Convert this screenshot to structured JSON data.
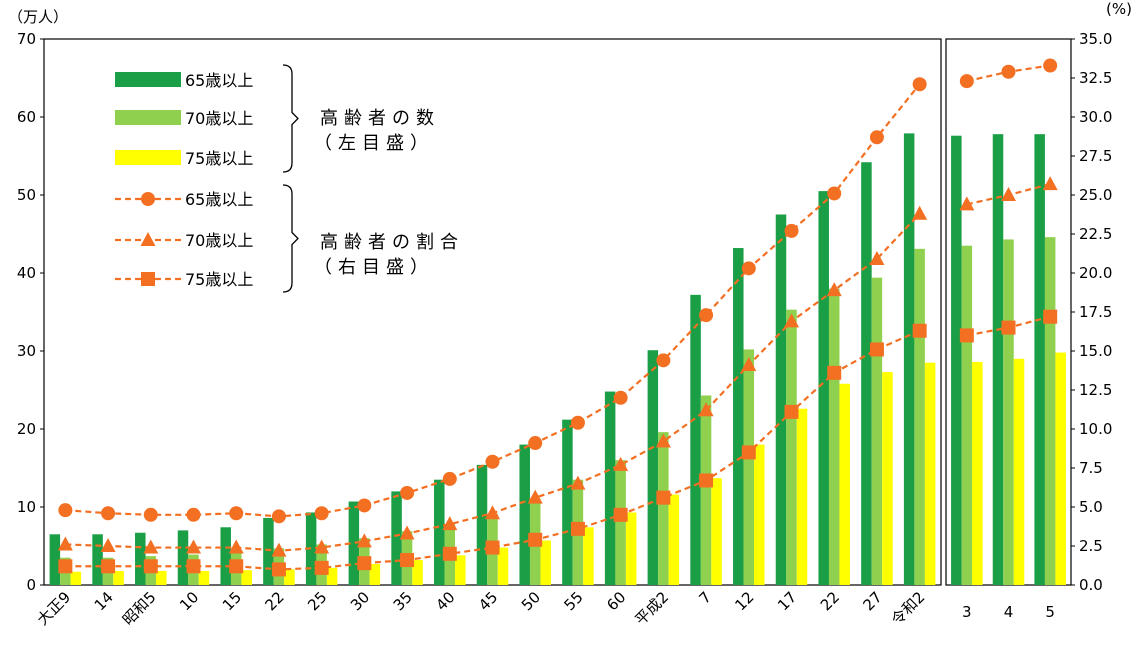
{
  "chart_data": {
    "type": "bar",
    "left_axis_unit": "（万人）",
    "right_axis_unit": "(%)",
    "left_axis": {
      "range": [
        0,
        70
      ],
      "ticks": [
        "0",
        "10",
        "20",
        "30",
        "40",
        "50",
        "60",
        "70"
      ]
    },
    "right_axis": {
      "range": [
        0,
        35
      ],
      "ticks": [
        "0.0",
        "2.5",
        "5.0",
        "7.5",
        "10.0",
        "12.5",
        "15.0",
        "17.5",
        "20.0",
        "22.5",
        "25.0",
        "27.5",
        "30.0",
        "32.5",
        "35.0"
      ]
    },
    "categories": [
      "大正9",
      "14",
      "昭和5",
      "10",
      "15",
      "22",
      "25",
      "30",
      "35",
      "40",
      "45",
      "50",
      "55",
      "60",
      "平成2",
      "7",
      "12",
      "17",
      "22",
      "27",
      "令和2",
      "3",
      "4",
      "5"
    ],
    "panels": [
      {
        "categories_count": 21
      },
      {
        "categories_count": 3
      }
    ],
    "bar_series": [
      {
        "name": "65歳以上",
        "color": "#1a9e46",
        "values": [
          6.5,
          6.5,
          6.7,
          7.0,
          7.4,
          8.6,
          9.3,
          10.7,
          12.0,
          13.5,
          15.4,
          18.0,
          21.2,
          24.8,
          30.1,
          37.2,
          43.2,
          47.5,
          50.5,
          54.2,
          57.9,
          57.6,
          57.8,
          57.8
        ]
      },
      {
        "name": "70歳以上",
        "color": "#8fd14f",
        "values": [
          3.5,
          3.5,
          3.7,
          3.9,
          4.1,
          4.7,
          5.2,
          6.0,
          6.9,
          7.8,
          9.1,
          11.1,
          13.5,
          16.0,
          19.6,
          24.3,
          30.2,
          35.3,
          38.0,
          39.4,
          43.1,
          43.5,
          44.3,
          44.6
        ]
      },
      {
        "name": "75歳以上",
        "color": "#ffff00",
        "values": [
          1.7,
          1.8,
          1.8,
          1.8,
          1.9,
          2.0,
          2.2,
          2.7,
          3.2,
          3.8,
          4.8,
          5.7,
          7.4,
          9.3,
          11.6,
          13.7,
          18.0,
          22.6,
          25.8,
          27.3,
          28.5,
          28.6,
          29.0,
          29.8
        ]
      }
    ],
    "line_series": [
      {
        "name": "65歳以上",
        "marker": "circle",
        "color": "#f36f21",
        "values": [
          4.8,
          4.6,
          4.5,
          4.5,
          4.6,
          4.4,
          4.6,
          5.1,
          5.9,
          6.8,
          7.9,
          9.1,
          10.4,
          12.0,
          14.4,
          17.3,
          20.3,
          22.7,
          25.1,
          28.7,
          32.1,
          32.3,
          32.9,
          33.3
        ]
      },
      {
        "name": "70歳以上",
        "marker": "triangle",
        "color": "#f36f21",
        "values": [
          2.6,
          2.5,
          2.4,
          2.4,
          2.4,
          2.2,
          2.4,
          2.8,
          3.3,
          3.9,
          4.6,
          5.6,
          6.5,
          7.7,
          9.2,
          11.2,
          14.1,
          16.9,
          18.9,
          20.9,
          23.8,
          24.4,
          25.0,
          25.7
        ]
      },
      {
        "name": "75歳以上",
        "marker": "square",
        "color": "#f36f21",
        "values": [
          1.2,
          1.2,
          1.2,
          1.2,
          1.2,
          1.0,
          1.1,
          1.4,
          1.6,
          2.0,
          2.4,
          2.9,
          3.6,
          4.5,
          5.6,
          6.7,
          8.5,
          11.1,
          13.6,
          15.1,
          16.3,
          16.0,
          16.5,
          17.2
        ]
      }
    ],
    "legend": {
      "placement": "top-left",
      "bar_group_title": "高齢者の数",
      "bar_group_sub": "（左目盛）",
      "line_group_title": "高齢者の割合",
      "line_group_sub": "（右目盛）"
    }
  }
}
